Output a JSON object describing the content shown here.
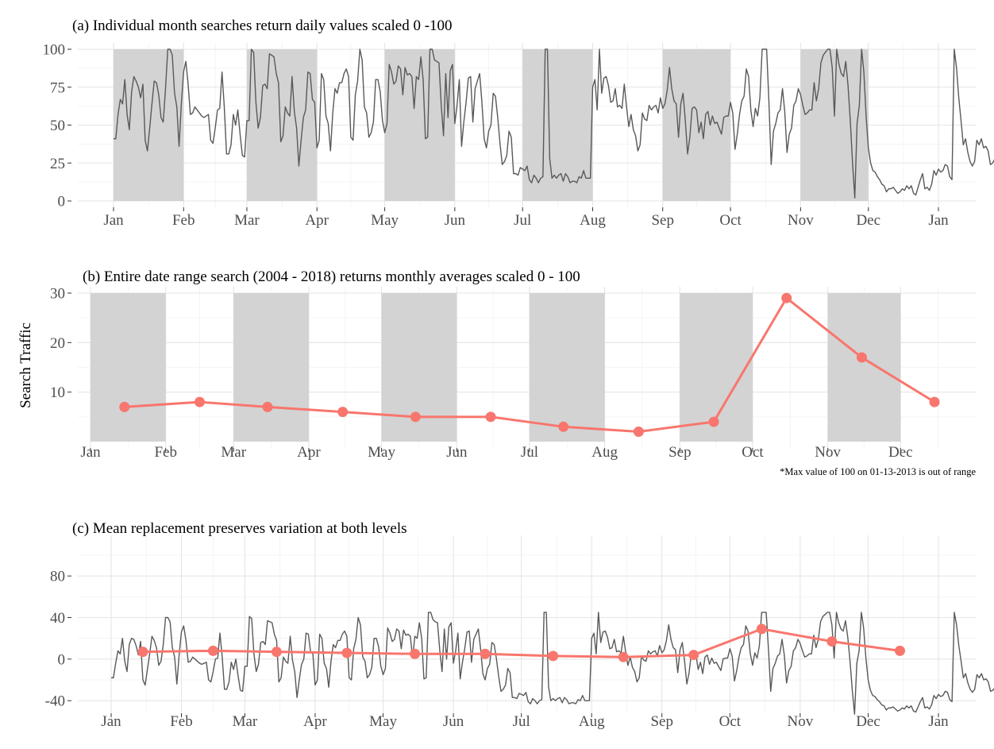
{
  "chart_data": [
    {
      "type": "line",
      "title": "(a) Individual month searches return daily values scaled 0 -100",
      "xlabel": "",
      "ylabel": "",
      "x_ticks": [
        "Jan",
        "Feb",
        "Mar",
        "Apr",
        "May",
        "Jun",
        "Jul",
        "Aug",
        "Sep",
        "Oct",
        "Nov",
        "Dec",
        "Jan"
      ],
      "y_ticks": [
        0,
        25,
        50,
        75,
        100
      ],
      "ylim": [
        0,
        100
      ],
      "grid": true,
      "shaded_months": [
        "Jan",
        "Mar",
        "May",
        "Jul",
        "Sep",
        "Nov"
      ],
      "series": [
        {
          "line_color": "#595959",
          "values": [
            41,
            41,
            57,
            67,
            64,
            80,
            57,
            47,
            72,
            82,
            79,
            75,
            68,
            77,
            40,
            33,
            48,
            64,
            79,
            78,
            70,
            55,
            52,
            74,
            100,
            100,
            96,
            71,
            62,
            36,
            64,
            85,
            92,
            77,
            57,
            58,
            62,
            60,
            58,
            56,
            55,
            56,
            57,
            40,
            38,
            48,
            60,
            61,
            85,
            62,
            31,
            31,
            37,
            57,
            50,
            60,
            44,
            30,
            29,
            53,
            53,
            100,
            98,
            65,
            48,
            55,
            76,
            77,
            74,
            97,
            96,
            95,
            84,
            78,
            39,
            43,
            62,
            58,
            56,
            82,
            59,
            48,
            23,
            40,
            55,
            60,
            85,
            84,
            67,
            65,
            35,
            40,
            84,
            80,
            56,
            51,
            33,
            58,
            74,
            71,
            78,
            78,
            84,
            87,
            82,
            42,
            40,
            70,
            79,
            100,
            93,
            62,
            58,
            42,
            45,
            52,
            80,
            80,
            72,
            53,
            45,
            51,
            90,
            85,
            77,
            79,
            89,
            87,
            70,
            88,
            83,
            84,
            82,
            61,
            82,
            80,
            95,
            80,
            41,
            42,
            100,
            100,
            93,
            92,
            91,
            63,
            43,
            84,
            55,
            86,
            90,
            51,
            63,
            80,
            36,
            52,
            65,
            81,
            82,
            52,
            74,
            79,
            84,
            65,
            41,
            35,
            46,
            50,
            71,
            69,
            55,
            38,
            24,
            26,
            30,
            46,
            42,
            18,
            18,
            17,
            22,
            21,
            20,
            23,
            14,
            12,
            17,
            15,
            12,
            15,
            16,
            100,
            100,
            28,
            15,
            17,
            15,
            17,
            18,
            13,
            18,
            16,
            12,
            13,
            13,
            12,
            16,
            15,
            20,
            15,
            15,
            15,
            75,
            80,
            60,
            100,
            71,
            81,
            82,
            76,
            65,
            66,
            74,
            62,
            63,
            61,
            77,
            62,
            49,
            57,
            47,
            43,
            33,
            37,
            58,
            54,
            53,
            63,
            60,
            62,
            63,
            58,
            68,
            61,
            64,
            73,
            88,
            74,
            66,
            64,
            42,
            64,
            71,
            53,
            31,
            42,
            61,
            62,
            60,
            45,
            52,
            41,
            57,
            59,
            50,
            56,
            51,
            52,
            48,
            44,
            55,
            56,
            56,
            65,
            58,
            34,
            44,
            57,
            66,
            69,
            87,
            82,
            60,
            49,
            61,
            56,
            68,
            100,
            100,
            100,
            65,
            24,
            46,
            51,
            58,
            60,
            74,
            59,
            32,
            44,
            48,
            63,
            66,
            74,
            70,
            63,
            57,
            58,
            60,
            60,
            78,
            66,
            74,
            91,
            96,
            98,
            100,
            100,
            88,
            56,
            100,
            90,
            84,
            82,
            92,
            76,
            53,
            25,
            2,
            51,
            63,
            100,
            85,
            56,
            35,
            25,
            20,
            19,
            16,
            14,
            11,
            10,
            6,
            8,
            8,
            9,
            7,
            5,
            6,
            8,
            7,
            10,
            8,
            10,
            5,
            4,
            9,
            14,
            18,
            8,
            9,
            7,
            11,
            20,
            17,
            21,
            19,
            20,
            24,
            23,
            16,
            14,
            100,
            88,
            68,
            53,
            37,
            41,
            32,
            26,
            23,
            26,
            40,
            37,
            41,
            35,
            36,
            33,
            24,
            25,
            28,
            25,
            16,
            15,
            13,
            10,
            9,
            13,
            22,
            28,
            30,
            33,
            40,
            82,
            38,
            48,
            100,
            99,
            96,
            100,
            74,
            41,
            44,
            84,
            71,
            75,
            72,
            73,
            55,
            30,
            38,
            44,
            42,
            44,
            39,
            33,
            25,
            17,
            14,
            16,
            15,
            12,
            18,
            15,
            17,
            17,
            16,
            12,
            18
          ]
        }
      ]
    },
    {
      "type": "line",
      "title": "(b) Entire date range search (2004 - 2018) returns monthly averages scaled 0 - 100",
      "xlabel": "",
      "ylabel": "Search Traffic",
      "x_ticks": [
        "Jan",
        "Feb",
        "Mar",
        "Apr",
        "May",
        "Jun",
        "Jul",
        "Aug",
        "Sep",
        "Oct",
        "Nov",
        "Dec"
      ],
      "y_ticks": [
        10,
        20,
        30
      ],
      "ylim": [
        0,
        30
      ],
      "grid": true,
      "shaded_months": [
        "Jan",
        "Mar",
        "May",
        "Jul",
        "Sep",
        "Nov"
      ],
      "note": "*Max value of 100 on 01-13-2013 is out of range",
      "series": [
        {
          "line_color": "#f8766d",
          "x": [
            "Jan 15",
            "Feb 15",
            "Mar 15",
            "Apr 15",
            "May 15",
            "Jun 15",
            "Jul 15",
            "Aug 15",
            "Sep 15",
            "Oct 15",
            "Nov 15",
            "Dec 15"
          ],
          "values": [
            7,
            8,
            7,
            6,
            5,
            5,
            3,
            2,
            4,
            29,
            17,
            8
          ]
        }
      ]
    },
    {
      "type": "line",
      "title": "(c) Mean replacement preserves variation at both levels",
      "xlabel": "",
      "ylabel": "",
      "x_ticks": [
        "Jan",
        "Feb",
        "Mar",
        "Apr",
        "May",
        "Jun",
        "Jul",
        "Aug",
        "Sep",
        "Oct",
        "Nov",
        "Dec",
        "Jan"
      ],
      "y_ticks": [
        -40,
        0,
        40,
        80
      ],
      "ylim": [
        -40,
        110
      ],
      "grid": true,
      "series": [
        {
          "line_color": "#595959",
          "values": [
            -18,
            -18,
            -4,
            8,
            5,
            20,
            -2,
            -12,
            14,
            20,
            19,
            13,
            4,
            17,
            -20,
            -25,
            -10,
            5,
            22,
            18,
            11,
            -6,
            -2,
            14,
            40,
            40,
            36,
            11,
            2,
            -24,
            4,
            26,
            32,
            18,
            -3,
            -2,
            2,
            0,
            -2,
            -4,
            -5,
            -4,
            -3,
            -20,
            -22,
            -12,
            0,
            1,
            25,
            2,
            -29,
            -29,
            -22,
            -3,
            -10,
            0,
            -16,
            -30,
            -31,
            -7,
            -7,
            41,
            39,
            5,
            -12,
            -5,
            16,
            17,
            14,
            37,
            36,
            35,
            24,
            18,
            -22,
            -18,
            2,
            -2,
            -4,
            22,
            -1,
            -12,
            -37,
            -20,
            -5,
            0,
            25,
            24,
            7,
            5,
            -25,
            -20,
            24,
            20,
            -4,
            -9,
            -27,
            -2,
            14,
            11,
            18,
            18,
            24,
            27,
            22,
            -18,
            -20,
            10,
            19,
            40,
            33,
            2,
            -2,
            -18,
            -15,
            -8,
            20,
            20,
            12,
            -7,
            -15,
            -9,
            30,
            25,
            17,
            19,
            29,
            27,
            10,
            28,
            23,
            24,
            22,
            1,
            22,
            20,
            35,
            20,
            -19,
            -18,
            45,
            45,
            38,
            36,
            35,
            8,
            -12,
            29,
            0,
            31,
            35,
            -4,
            8,
            25,
            -19,
            -3,
            10,
            26,
            27,
            -3,
            19,
            24,
            29,
            10,
            -14,
            -20,
            -9,
            -5,
            16,
            14,
            0,
            -17,
            -31,
            -29,
            -25,
            -9,
            -13,
            -37,
            -37,
            -38,
            -33,
            -34,
            -35,
            -32,
            -41,
            -43,
            -38,
            -40,
            -43,
            -40,
            -39,
            45,
            45,
            -27,
            -40,
            -38,
            -40,
            -38,
            -37,
            -42,
            -37,
            -39,
            -43,
            -42,
            -42,
            -43,
            -39,
            -40,
            -35,
            -40,
            -40,
            -40,
            20,
            25,
            5,
            45,
            16,
            26,
            27,
            21,
            10,
            11,
            19,
            7,
            8,
            6,
            22,
            7,
            -6,
            2,
            -8,
            -12,
            -22,
            -18,
            3,
            -1,
            -2,
            8,
            5,
            7,
            8,
            3,
            13,
            6,
            9,
            18,
            33,
            19,
            11,
            9,
            -13,
            9,
            16,
            -2,
            -24,
            -13,
            6,
            7,
            5,
            -10,
            -3,
            -14,
            2,
            4,
            -5,
            1,
            -4,
            -3,
            -7,
            -11,
            0,
            1,
            1,
            10,
            3,
            -21,
            -11,
            2,
            11,
            14,
            32,
            27,
            5,
            -6,
            6,
            1,
            13,
            45,
            45,
            45,
            10,
            -31,
            -9,
            -4,
            3,
            5,
            19,
            4,
            -23,
            -11,
            -7,
            8,
            11,
            19,
            15,
            8,
            2,
            3,
            5,
            5,
            23,
            11,
            19,
            36,
            41,
            43,
            45,
            45,
            33,
            1,
            45,
            35,
            29,
            27,
            37,
            21,
            -2,
            -30,
            -53,
            -4,
            8,
            45,
            30,
            1,
            -20,
            -30,
            -35,
            -36,
            -39,
            -41,
            -44,
            -45,
            -49,
            -47,
            -47,
            -46,
            -48,
            -50,
            -49,
            -47,
            -48,
            -45,
            -47,
            -45,
            -50,
            -51,
            -46,
            -41,
            -37,
            -47,
            -46,
            -48,
            -44,
            -35,
            -38,
            -34,
            -36,
            -35,
            -31,
            -32,
            -39,
            -41,
            45,
            33,
            13,
            -2,
            -18,
            -14,
            -23,
            -29,
            -32,
            -29,
            -15,
            -18,
            -14,
            -20,
            -19,
            -22,
            -31,
            -30,
            -27,
            -30,
            -39,
            -40,
            -42,
            -45,
            -46,
            -42,
            -33,
            -27,
            -25,
            -22,
            -15,
            27,
            -17,
            -7,
            45,
            44,
            41,
            45,
            19,
            -14,
            -11,
            29,
            16,
            20,
            17,
            18,
            0,
            -25,
            -17,
            -11,
            -13,
            -11,
            -16,
            -22,
            -30,
            -38,
            -41,
            -39,
            -40,
            -43,
            -37,
            -40,
            -38,
            -38,
            -39,
            -43,
            -37
          ]
        },
        {
          "line_color": "#f8766d",
          "x": [
            "Jan 15",
            "Feb 15",
            "Mar 15",
            "Apr 15",
            "May 15",
            "Jun 15",
            "Jul 15",
            "Aug 15",
            "Sep 15",
            "Oct 15",
            "Nov 15",
            "Dec 15"
          ],
          "values": [
            7,
            8,
            7,
            6,
            5,
            5,
            3,
            2,
            4,
            29,
            17,
            8
          ]
        }
      ]
    }
  ]
}
